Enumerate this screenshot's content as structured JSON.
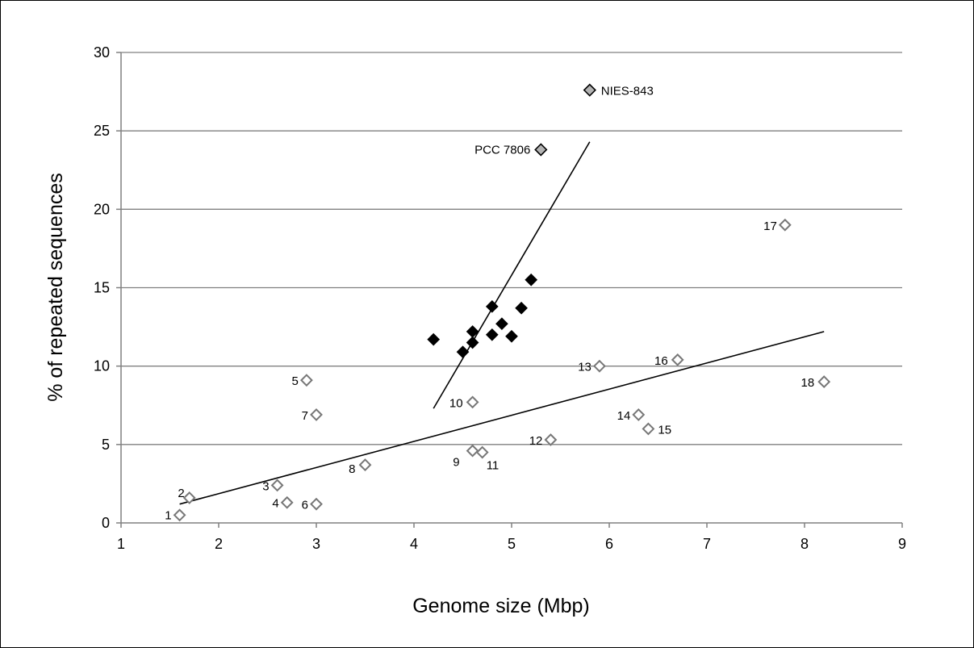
{
  "chart_data": {
    "type": "scatter",
    "xlabel": "Genome size (Mbp)",
    "ylabel": "% of repeated sequences",
    "xlim": [
      1,
      9
    ],
    "ylim": [
      0,
      30
    ],
    "x_ticks": [
      1,
      2,
      3,
      4,
      5,
      6,
      7,
      8,
      9
    ],
    "y_ticks": [
      0,
      5,
      10,
      15,
      20,
      25,
      30
    ],
    "grid": "horizontal",
    "colors": {
      "open": "#ffffff",
      "filled": "#000000",
      "grey": "#b3b3b3",
      "gridline": "#808080"
    },
    "series": [
      {
        "marker": "open-diamond",
        "points": [
          {
            "label": "1",
            "x": 1.6,
            "y": 0.5
          },
          {
            "label": "2",
            "x": 1.7,
            "y": 1.6
          },
          {
            "label": "3",
            "x": 2.6,
            "y": 2.4
          },
          {
            "label": "4",
            "x": 2.7,
            "y": 1.3
          },
          {
            "label": "5",
            "x": 2.9,
            "y": 9.1
          },
          {
            "label": "6",
            "x": 3.0,
            "y": 1.2
          },
          {
            "label": "7",
            "x": 3.0,
            "y": 6.9
          },
          {
            "label": "8",
            "x": 3.5,
            "y": 3.7
          },
          {
            "label": "9",
            "x": 4.6,
            "y": 4.6
          },
          {
            "label": "10",
            "x": 4.6,
            "y": 7.7
          },
          {
            "label": "11",
            "x": 4.7,
            "y": 4.5
          },
          {
            "label": "12",
            "x": 5.4,
            "y": 5.3
          },
          {
            "label": "13",
            "x": 5.9,
            "y": 10.0
          },
          {
            "label": "14",
            "x": 6.3,
            "y": 6.9
          },
          {
            "label": "15",
            "x": 6.4,
            "y": 6.0
          },
          {
            "label": "16",
            "x": 6.7,
            "y": 10.4
          },
          {
            "label": "17",
            "x": 7.8,
            "y": 19.0
          },
          {
            "label": "18",
            "x": 8.2,
            "y": 9.0
          }
        ]
      },
      {
        "marker": "filled-diamond",
        "points": [
          {
            "x": 4.2,
            "y": 11.7
          },
          {
            "x": 4.5,
            "y": 10.9
          },
          {
            "x": 4.6,
            "y": 11.5
          },
          {
            "x": 4.6,
            "y": 12.2
          },
          {
            "x": 4.8,
            "y": 12.0
          },
          {
            "x": 4.8,
            "y": 13.8
          },
          {
            "x": 4.9,
            "y": 12.7
          },
          {
            "x": 5.0,
            "y": 11.9
          },
          {
            "x": 5.1,
            "y": 13.7
          },
          {
            "x": 5.2,
            "y": 15.5
          }
        ]
      },
      {
        "marker": "grey-diamond",
        "points": [
          {
            "label": "PCC 7806",
            "x": 5.3,
            "y": 23.8
          },
          {
            "label": "NIES-843",
            "x": 5.8,
            "y": 27.6
          }
        ]
      }
    ],
    "trendlines": [
      {
        "x1": 1.6,
        "y1": 1.2,
        "x2": 8.2,
        "y2": 12.2
      },
      {
        "x1": 4.2,
        "y1": 7.3,
        "x2": 5.8,
        "y2": 24.3
      }
    ]
  }
}
